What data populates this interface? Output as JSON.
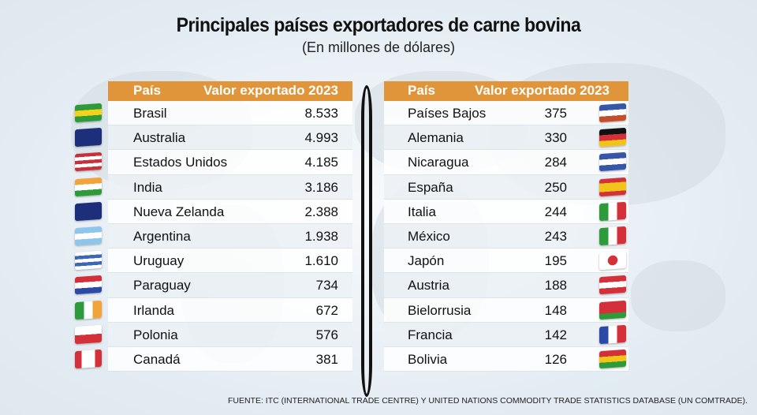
{
  "title": "Principales países exportadores de carne bovina",
  "subtitle": "(En millones de dólares)",
  "footer": "FUENTE: ITC (INTERNATIONAL TRADE CENTRE) Y UNITED NATIONS COMMODITY TRADE STATISTICS DATABASE (UN COMTRADE).",
  "colors": {
    "header": "#e0953a"
  },
  "chart_data": {
    "type": "table",
    "columns": [
      "País",
      "Valor exportado 2023"
    ],
    "left": [
      {
        "country": "Brasil",
        "value": "8.533",
        "flag": [
          "h",
          "#2e9b3a",
          "#f2d21b",
          "#2e9b3a"
        ]
      },
      {
        "country": "Australia",
        "value": "4.993",
        "flag": [
          "h",
          "#1d2f7a",
          "#1d2f7a"
        ]
      },
      {
        "country": "Estados Unidos",
        "value": "4.185",
        "flag": [
          "h",
          "#c8313b",
          "#ffffff",
          "#c8313b",
          "#ffffff",
          "#c8313b"
        ]
      },
      {
        "country": "India",
        "value": "3.186",
        "flag": [
          "h",
          "#f2a33a",
          "#ffffff",
          "#2e9b3a"
        ]
      },
      {
        "country": "Nueva Zelanda",
        "value": "2.388",
        "flag": [
          "h",
          "#1d2f7a",
          "#1d2f7a"
        ]
      },
      {
        "country": "Argentina",
        "value": "1.938",
        "flag": [
          "h",
          "#8ec5ea",
          "#ffffff",
          "#8ec5ea"
        ]
      },
      {
        "country": "Uruguay",
        "value": "1.610",
        "flag": [
          "h",
          "#ffffff",
          "#3b67b5",
          "#ffffff",
          "#3b67b5",
          "#ffffff"
        ]
      },
      {
        "country": "Paraguay",
        "value": "734",
        "flag": [
          "h",
          "#d3303a",
          "#ffffff",
          "#2b4aa5"
        ]
      },
      {
        "country": "Irlanda",
        "value": "672",
        "flag": [
          "v",
          "#2e9b3a",
          "#ffffff",
          "#f2a33a"
        ]
      },
      {
        "country": "Polonia",
        "value": "576",
        "flag": [
          "h",
          "#ffffff",
          "#d3303a"
        ]
      },
      {
        "country": "Canadá",
        "value": "381",
        "flag": [
          "v",
          "#d3303a",
          "#ffffff",
          "#ffffff",
          "#d3303a"
        ]
      }
    ],
    "right": [
      {
        "country": "Países Bajos",
        "value": "375",
        "flag": [
          "h",
          "#3656a8",
          "#ffffff",
          "#c2502c"
        ]
      },
      {
        "country": "Alemania",
        "value": "330",
        "flag": [
          "h",
          "#111111",
          "#d3303a",
          "#f2c419"
        ]
      },
      {
        "country": "Nicaragua",
        "value": "284",
        "flag": [
          "h",
          "#3656a8",
          "#ffffff",
          "#3656a8"
        ]
      },
      {
        "country": "España",
        "value": "250",
        "flag": [
          "h",
          "#d3303a",
          "#f2c419",
          "#f2c419",
          "#d3303a"
        ]
      },
      {
        "country": "Italia",
        "value": "244",
        "flag": [
          "v",
          "#2e9b3a",
          "#ffffff",
          "#d3303a"
        ]
      },
      {
        "country": "México",
        "value": "243",
        "flag": [
          "v",
          "#2e9b3a",
          "#ffffff",
          "#d3303a"
        ]
      },
      {
        "country": "Japón",
        "value": "195",
        "flag": [
          "j",
          "#ffffff",
          "#d3303a"
        ]
      },
      {
        "country": "Austria",
        "value": "188",
        "flag": [
          "h",
          "#d3303a",
          "#ffffff",
          "#d3303a"
        ]
      },
      {
        "country": "Bielorrusia",
        "value": "148",
        "flag": [
          "h",
          "#d3303a",
          "#d3303a",
          "#2e9b3a"
        ]
      },
      {
        "country": "Francia",
        "value": "142",
        "flag": [
          "v",
          "#2b4aa5",
          "#ffffff",
          "#d3303a"
        ]
      },
      {
        "country": "Bolivia",
        "value": "126",
        "flag": [
          "h",
          "#d3303a",
          "#f2c419",
          "#2e9b3a"
        ]
      }
    ]
  }
}
